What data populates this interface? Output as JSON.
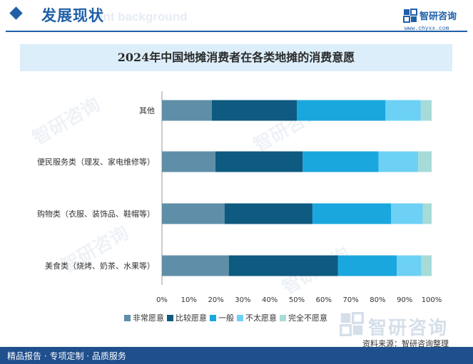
{
  "header": {
    "title": "发展现状",
    "watermark": "ent background"
  },
  "logo": {
    "name": "智研咨询",
    "url": "www.chyxx.com"
  },
  "chart_data": {
    "type": "bar",
    "orientation": "horizontal",
    "stacked": true,
    "title": "2024年中国地摊消费者在各类地摊的消费意愿",
    "categories": [
      "其他",
      "便民服务类（理发、家电维修等）",
      "购物类（衣服、装饰品、鞋帽等）",
      "美食类（烧烤、奶茶、水果等）"
    ],
    "series": [
      {
        "name": "非常愿意",
        "values": [
          18.5,
          19.8,
          23.2,
          24.8
        ]
      },
      {
        "name": "比较愿意",
        "values": [
          31.5,
          32.4,
          32.6,
          40.5
        ]
      },
      {
        "name": "一般",
        "values": [
          32.9,
          28.1,
          29.2,
          21.8
        ]
      },
      {
        "name": "不太愿意",
        "values": [
          13.1,
          14.7,
          11.7,
          9.1
        ]
      },
      {
        "name": "完全不愿意",
        "values": [
          4.0,
          5.0,
          3.3,
          3.8
        ]
      }
    ],
    "xlim": [
      0,
      100
    ],
    "xticks": [
      "0%",
      "10%",
      "20%",
      "30%",
      "40%",
      "50%",
      "60%",
      "70%",
      "80%",
      "90%",
      "100%"
    ],
    "legend_position": "bottom",
    "grid": false
  },
  "colors": [
    "#5f8fa8",
    "#0e5a80",
    "#1aa7de",
    "#6dd0f5",
    "#a6dbd8"
  ],
  "source": "资料来源：智研咨询整理",
  "brand": "智研咨询",
  "footer": "精品报告 · 专项定制 · 品质服务"
}
